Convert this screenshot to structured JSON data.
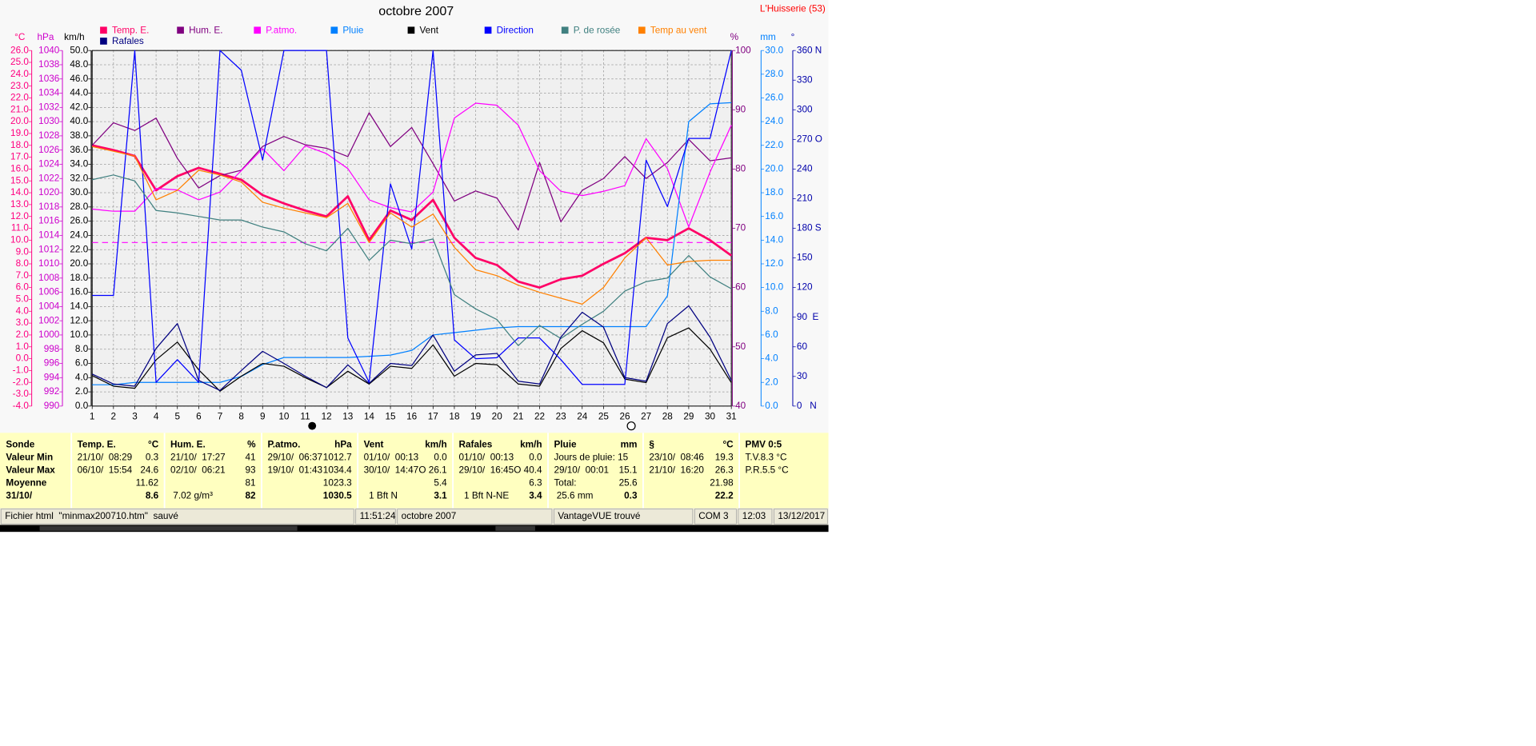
{
  "chart_data": {
    "type": "line",
    "title": "octobre 2007",
    "station": "L'Huisserie (53)",
    "x": [
      1,
      2,
      3,
      4,
      5,
      6,
      7,
      8,
      9,
      10,
      11,
      12,
      13,
      14,
      15,
      16,
      17,
      18,
      19,
      20,
      21,
      22,
      23,
      24,
      25,
      26,
      27,
      28,
      29,
      30,
      31
    ],
    "xlim": [
      1,
      31
    ],
    "xticks": [
      1,
      2,
      3,
      4,
      5,
      6,
      7,
      8,
      9,
      10,
      11,
      12,
      13,
      14,
      15,
      16,
      17,
      18,
      19,
      20,
      21,
      22,
      23,
      24,
      25,
      26,
      27,
      28,
      29,
      30,
      31
    ],
    "axes": [
      {
        "unit": "°C",
        "color": "#ff0080",
        "ylim": [
          -4,
          26
        ],
        "yticks": [
          {
            "value": -4,
            "label": "-4.0"
          },
          {
            "value": -3,
            "label": "-3.0"
          },
          {
            "value": -2,
            "label": "-2.0"
          },
          {
            "value": -1,
            "label": "-1.0"
          },
          {
            "value": 0,
            "label": "0.0"
          },
          {
            "value": 1,
            "label": "1.0"
          },
          {
            "value": 2,
            "label": "2.0"
          },
          {
            "value": 3,
            "label": "3.0"
          },
          {
            "value": 4,
            "label": "4.0"
          },
          {
            "value": 5,
            "label": "5.0"
          },
          {
            "value": 6,
            "label": "6.0"
          },
          {
            "value": 7,
            "label": "7.0"
          },
          {
            "value": 8,
            "label": "8.0"
          },
          {
            "value": 9,
            "label": "9.0"
          },
          {
            "value": 10,
            "label": "10.0"
          },
          {
            "value": 11,
            "label": "11.0"
          },
          {
            "value": 12,
            "label": "12.0"
          },
          {
            "value": 13,
            "label": "13.0"
          },
          {
            "value": 14,
            "label": "14.0"
          },
          {
            "value": 15,
            "label": "15.0"
          },
          {
            "value": 16,
            "label": "16.0"
          },
          {
            "value": 17,
            "label": "17.0"
          },
          {
            "value": 18,
            "label": "18.0"
          },
          {
            "value": 19,
            "label": "19.0"
          },
          {
            "value": 20,
            "label": "20.0"
          },
          {
            "value": 21,
            "label": "21.0"
          },
          {
            "value": 22,
            "label": "22.0"
          },
          {
            "value": 23,
            "label": "23.0"
          },
          {
            "value": 24,
            "label": "24.0"
          },
          {
            "value": 25,
            "label": "25.0"
          },
          {
            "value": 26,
            "label": "26.0"
          }
        ]
      },
      {
        "unit": "hPa",
        "color": "#cc00cc",
        "ylim": [
          990,
          1040
        ],
        "yticks": [
          990,
          992,
          994,
          996,
          998,
          1000,
          1002,
          1004,
          1006,
          1008,
          1010,
          1012,
          1014,
          1016,
          1018,
          1020,
          1022,
          1024,
          1026,
          1028,
          1030,
          1032,
          1034,
          1036,
          1038,
          1040
        ]
      },
      {
        "unit": "km/h",
        "color": "#000000",
        "grid": true,
        "ylim": [
          0,
          50
        ],
        "yticks": [
          {
            "value": 0,
            "label": "0.0"
          },
          {
            "value": 2,
            "label": "2.0"
          },
          {
            "value": 4,
            "label": "4.0"
          },
          {
            "value": 6,
            "label": "6.0"
          },
          {
            "value": 8,
            "label": "8.0"
          },
          {
            "value": 10,
            "label": "10.0"
          },
          {
            "value": 12,
            "label": "12.0"
          },
          {
            "value": 14,
            "label": "14.0"
          },
          {
            "value": 16,
            "label": "16.0"
          },
          {
            "value": 18,
            "label": "18.0"
          },
          {
            "value": 20,
            "label": "20.0"
          },
          {
            "value": 22,
            "label": "22.0"
          },
          {
            "value": 24,
            "label": "24.0"
          },
          {
            "value": 26,
            "label": "26.0"
          },
          {
            "value": 28,
            "label": "28.0"
          },
          {
            "value": 30,
            "label": "30.0"
          },
          {
            "value": 32,
            "label": "32.0"
          },
          {
            "value": 34,
            "label": "34.0"
          },
          {
            "value": 36,
            "label": "36.0"
          },
          {
            "value": 38,
            "label": "38.0"
          },
          {
            "value": 40,
            "label": "40.0"
          },
          {
            "value": 42,
            "label": "42.0"
          },
          {
            "value": 44,
            "label": "44.0"
          },
          {
            "value": 46,
            "label": "46.0"
          },
          {
            "value": 48,
            "label": "48.0"
          },
          {
            "value": 50,
            "label": "50.0"
          }
        ]
      },
      {
        "unit": "%",
        "color": "#800080",
        "ylim": [
          40,
          100
        ],
        "yticks": [
          40,
          50,
          60,
          70,
          80,
          90,
          100
        ]
      },
      {
        "unit": "mm",
        "color": "#0080ff",
        "ylim": [
          0,
          30
        ],
        "yticks": [
          {
            "value": 0,
            "label": "0.0"
          },
          {
            "value": 2,
            "label": "2.0"
          },
          {
            "value": 4,
            "label": "4.0"
          },
          {
            "value": 6,
            "label": "6.0"
          },
          {
            "value": 8,
            "label": "8.0"
          },
          {
            "value": 10,
            "label": "10.0"
          },
          {
            "value": 12,
            "label": "12.0"
          },
          {
            "value": 14,
            "label": "14.0"
          },
          {
            "value": 16,
            "label": "16.0"
          },
          {
            "value": 18,
            "label": "18.0"
          },
          {
            "value": 20,
            "label": "20.0"
          },
          {
            "value": 22,
            "label": "22.0"
          },
          {
            "value": 24,
            "label": "24.0"
          },
          {
            "value": 26,
            "label": "26.0"
          },
          {
            "value": 28,
            "label": "28.0"
          },
          {
            "value": 30,
            "label": "30.0"
          }
        ]
      },
      {
        "unit": "°",
        "color": "#0000aa",
        "ylim": [
          0,
          360
        ],
        "yticks": [
          {
            "value": 0,
            "label": "0   N"
          },
          30,
          60,
          {
            "value": 90,
            "label": "90  E"
          },
          120,
          150,
          {
            "value": 180,
            "label": "180 S"
          },
          210,
          240,
          {
            "value": 270,
            "label": "270 O"
          },
          300,
          330,
          {
            "value": 360,
            "label": "360 N"
          }
        ]
      }
    ],
    "series": [
      {
        "name": "Temp. E.",
        "color": "#ff0066",
        "axis": "°C",
        "values": [
          18.0,
          17.6,
          17.1,
          14.2,
          15.4,
          16.1,
          15.6,
          15.1,
          13.8,
          13.1,
          12.5,
          12.0,
          13.7,
          10.0,
          12.5,
          11.7,
          13.4,
          10.2,
          8.5,
          7.9,
          6.5,
          6.0,
          6.7,
          7.0,
          8.0,
          8.9,
          10.2,
          10.0,
          11.0,
          10.0,
          8.7
        ]
      },
      {
        "name": "Hum. E.",
        "color": "#800080",
        "axis": "%",
        "values": [
          84.0,
          87.8,
          86.5,
          88.6,
          81.8,
          76.8,
          78.9,
          79.8,
          83.8,
          85.5,
          84.1,
          83.5,
          82.1,
          89.5,
          83.8,
          87.0,
          80.9,
          74.6,
          76.3,
          75.1,
          69.7,
          81.1,
          71.1,
          76.4,
          78.4,
          82.1,
          78.4,
          81.1,
          85.0,
          81.4,
          81.9
        ]
      },
      {
        "name": "P.atmo.",
        "color": "#ff00ff",
        "axis": "hPa",
        "values": [
          1017.7,
          1017.4,
          1017.4,
          1020.6,
          1020.4,
          1019.0,
          1020.1,
          1023.1,
          1026.2,
          1023.1,
          1026.6,
          1025.5,
          1023.4,
          1019.0,
          1017.9,
          1017.3,
          1020.1,
          1030.5,
          1032.6,
          1032.3,
          1029.5,
          1023.1,
          1020.2,
          1019.6,
          1020.2,
          1021.0,
          1027.6,
          1023.4,
          1015.2,
          1022.9,
          1029.5
        ]
      },
      {
        "name": "Pluie",
        "color": "#0080ff",
        "axis": "mm",
        "values": [
          1.8,
          1.8,
          2.0,
          2.0,
          2.0,
          2.0,
          2.0,
          2.5,
          3.5,
          4.1,
          4.1,
          4.1,
          4.1,
          4.2,
          4.3,
          4.7,
          6.0,
          6.2,
          6.4,
          6.6,
          6.7,
          6.7,
          6.7,
          6.7,
          6.7,
          6.7,
          6.7,
          9.3,
          24.0,
          25.5,
          25.6
        ]
      },
      {
        "name": "Vent",
        "color": "#000000",
        "axis": "km/h",
        "values": [
          4.3,
          2.8,
          2.5,
          6.5,
          9.0,
          5.1,
          2.1,
          4.2,
          6.0,
          5.6,
          4.0,
          2.6,
          4.9,
          3.1,
          5.6,
          5.3,
          8.6,
          4.2,
          6.0,
          5.8,
          3.1,
          2.8,
          8.1,
          10.6,
          8.9,
          3.8,
          3.3,
          9.6,
          11.0,
          8.0,
          3.3
        ]
      },
      {
        "name": "Direction",
        "color": "#0000ff",
        "axis": "°",
        "values": [
          112,
          112,
          360,
          24,
          47,
          24,
          360,
          340,
          249,
          360,
          360,
          360,
          69,
          24,
          225,
          159,
          360,
          67,
          48,
          49,
          69,
          69,
          47,
          22,
          22,
          22,
          249,
          202,
          271,
          271,
          360
        ]
      },
      {
        "name": "P. de rosée",
        "color": "#408080",
        "axis": "°C",
        "values": [
          15.1,
          15.5,
          15.0,
          12.5,
          12.3,
          12.0,
          11.7,
          11.7,
          11.1,
          10.7,
          9.7,
          9.1,
          11.0,
          8.3,
          10.0,
          9.7,
          10.1,
          5.4,
          4.2,
          3.3,
          1.1,
          2.8,
          1.7,
          2.9,
          4.0,
          5.7,
          6.5,
          6.8,
          8.7,
          6.9,
          5.9
        ]
      },
      {
        "name": "Temp au vent",
        "color": "#ff8000",
        "axis": "°C",
        "values": [
          17.9,
          17.5,
          17.1,
          13.4,
          14.2,
          15.9,
          15.5,
          14.9,
          13.2,
          12.7,
          12.3,
          11.9,
          13.1,
          9.8,
          12.3,
          11.1,
          12.2,
          9.4,
          7.5,
          7.0,
          6.2,
          5.6,
          5.1,
          4.6,
          6.0,
          8.5,
          10.2,
          7.9,
          8.2,
          8.3,
          8.3
        ]
      },
      {
        "name": "Rafales",
        "color": "#000080",
        "axis": "km/h",
        "values": [
          4.5,
          3.1,
          2.8,
          8.1,
          11.6,
          3.6,
          2.2,
          5.0,
          7.7,
          6.0,
          4.2,
          2.6,
          5.8,
          3.2,
          6.0,
          5.7,
          10.0,
          4.9,
          7.2,
          7.4,
          3.5,
          3.1,
          9.7,
          13.2,
          11.1,
          4.0,
          3.5,
          11.6,
          14.1,
          9.7,
          3.6
        ]
      }
    ],
    "reference_line": {
      "axis": "hPa",
      "value": 1013,
      "color": "#ff00ff"
    },
    "grid": true
  },
  "table": {
    "columns": [
      {
        "header": "Sonde",
        "cells": [
          {
            "text": "Valeur Min"
          },
          {
            "text": "Valeur Max"
          },
          {
            "text": "Moyenne"
          },
          {
            "text": "31/10/"
          }
        ]
      },
      {
        "header": "Temp. E.",
        "unit": "°C",
        "cells": [
          {
            "text": "21/10/  08:29",
            "value": "0.3"
          },
          {
            "text": "06/10/  15:54",
            "value": "24.6"
          },
          {
            "value": "11.62"
          },
          {
            "value": "8.6"
          }
        ]
      },
      {
        "header": "Hum. E.",
        "unit": "%",
        "cells": [
          {
            "text": "21/10/  17:27",
            "value": "41"
          },
          {
            "text": "02/10/  06:21",
            "value": "93"
          },
          {
            "value": "81"
          },
          {
            "text": " 7.02 g/m³",
            "value": "82"
          }
        ]
      },
      {
        "header": "P.atmo.",
        "unit": "hPa",
        "cells": [
          {
            "text": "29/10/  06:37",
            "value": "1012.7"
          },
          {
            "text": "19/10/  01:43",
            "value": "1034.4"
          },
          {
            "value": "1023.3"
          },
          {
            "value": "1030.5"
          }
        ]
      },
      {
        "header": "Vent",
        "unit": "km/h",
        "cells": [
          {
            "text": "01/10/  00:13",
            "value": "0.0"
          },
          {
            "text": "30/10/  14:47",
            "value": "O 26.1"
          },
          {
            "value": "5.4"
          },
          {
            "text": "  1 Bft N",
            "value": "3.1"
          }
        ]
      },
      {
        "header": "Rafales",
        "unit": "km/h",
        "cells": [
          {
            "text": "01/10/  00:13",
            "value": "0.0"
          },
          {
            "text": "29/10/  16:45",
            "value": "O 40.4"
          },
          {
            "value": "6.3"
          },
          {
            "text": "  1 Bft N-NE",
            "value": "3.4"
          }
        ]
      },
      {
        "header": "Pluie",
        "unit": "mm",
        "cells": [
          {
            "text": "Jours de pluie: 15"
          },
          {
            "text": "29/10/  00:01",
            "value": "15.1"
          },
          {
            "text": "Total:",
            "value": "25.6"
          },
          {
            "text": " 25.6 mm",
            "value": "0.3"
          }
        ]
      },
      {
        "header": "§",
        "unit": "°C",
        "cells": [
          {
            "text": "23/10/  08:46",
            "value": "19.3"
          },
          {
            "text": "21/10/  16:20",
            "value": "26.3"
          },
          {
            "value": "21.98"
          },
          {
            "value": "22.2"
          }
        ]
      },
      {
        "header": "PMV 0:5",
        "cells": [
          {
            "text": "T.V.8.3 °C"
          },
          {
            "text": "P.R.5.5 °C"
          }
        ]
      }
    ]
  },
  "status_bar": [
    "Fichier html  \"minmax200710.htm\"  sauvé",
    "11:51:24",
    "octobre 2007",
    "VantageVUE trouvé",
    "COM 3",
    "12:03",
    "13/12/2017"
  ]
}
